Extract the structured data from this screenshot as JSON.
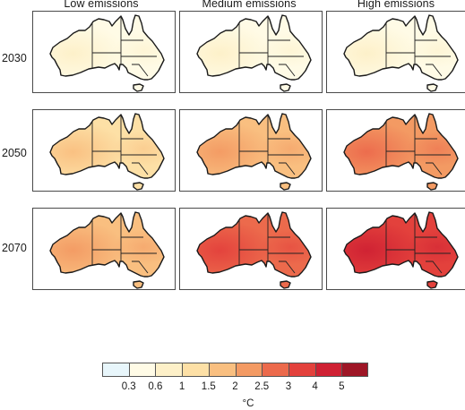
{
  "columns": [
    {
      "label": "Low emissions"
    },
    {
      "label": "Medium emissions"
    },
    {
      "label": "High emissions"
    }
  ],
  "rows": [
    {
      "label": "2030"
    },
    {
      "label": "2050"
    },
    {
      "label": "2070"
    }
  ],
  "panels": [
    [
      {
        "base": 1,
        "hot": 2
      },
      {
        "base": 1,
        "hot": 2
      },
      {
        "base": 1,
        "hot": 2
      }
    ],
    [
      {
        "base": 3,
        "hot": 4
      },
      {
        "base": 4,
        "hot": 5
      },
      {
        "base": 5,
        "hot": 6
      }
    ],
    [
      {
        "base": 4,
        "hot": 5
      },
      {
        "base": 6,
        "hot": 7
      },
      {
        "base": 7,
        "hot": 8
      }
    ]
  ],
  "legend": {
    "unit": "°C",
    "ticks": [
      "0.3",
      "0.6",
      "1",
      "1.5",
      "2",
      "2.5",
      "3",
      "4",
      "5"
    ],
    "colors": [
      "#e8f6fb",
      "#fffbe6",
      "#fdf0c8",
      "#fde0a6",
      "#f9bf80",
      "#f39a63",
      "#ec6a4c",
      "#e3413c",
      "#cf2133",
      "#9e1626"
    ]
  }
}
